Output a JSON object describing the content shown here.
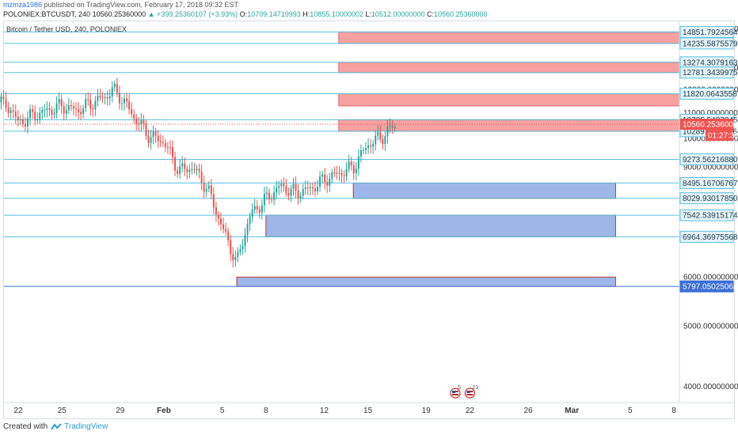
{
  "header": {
    "user": "mzmza1986",
    "published_text": "published on TradingView.com, February 17, 2018 09:32 EST",
    "symbol": "POLONIEX:BTCUSDT, 240",
    "last": "10560.25360000",
    "change": "▲ +399.25360107 (+3.93%)",
    "open_label": "O:",
    "open": "10709.14719993",
    "high_label": "H:",
    "high": "10855.10000002",
    "low_label": "L:",
    "low": "10512.00000000",
    "close_label": "C:",
    "close": "10560.25360000"
  },
  "footer": {
    "created_with": "Created with",
    "brand": "TradingView",
    "logo_icon": "tradingview-logo-icon"
  },
  "colors": {
    "up": "#26a69a",
    "down": "#ef5350",
    "hline": "#5bc0de",
    "resistance_fill": "#f7a1a1",
    "resistance_stroke": "#e06666",
    "support_fill": "#9db8e8",
    "support_stroke": "#c0392b",
    "price_tag_bg": "#e3f3f8",
    "last_price_bg": "#ef5350",
    "support_line": "#3b6fd6"
  },
  "chart_data": {
    "type": "candlestick",
    "title": "Bitcoin / Tether USD, 240, POLONIEX",
    "ylim": [
      3500,
      15300
    ],
    "y_scale": "log",
    "y_ticks": [
      "4000.00000000",
      "5000.00000000",
      "6000.00000000",
      "9000.00000000",
      "10000.00000000",
      "11000.00000000",
      "12000.00000000",
      "13000.00000000",
      "15000.00000000"
    ],
    "x_ticks": [
      "22",
      "25",
      "29",
      "Feb",
      "5",
      "8",
      "12",
      "15",
      "19",
      "22",
      "26",
      "Mar",
      "5",
      "8"
    ],
    "x_tick_dates": [
      "2018-01-22",
      "2018-01-25",
      "2018-01-29",
      "2018-02-01",
      "2018-02-05",
      "2018-02-08",
      "2018-02-12",
      "2018-02-15",
      "2018-02-19",
      "2018-02-22",
      "2018-02-26",
      "2018-03-01",
      "2018-03-05",
      "2018-03-08"
    ],
    "price_levels": [
      {
        "label": "14851.79245649",
        "value": 14851.79245649
      },
      {
        "label": "14235.58755799",
        "value": 14235.58755799
      },
      {
        "label": "13274.30791633",
        "value": 13274.30791633
      },
      {
        "label": "12781.34399753",
        "value": 12781.34399753
      },
      {
        "label": "11820.06435587",
        "value": 11820.06435587
      },
      {
        "label": "10735.54373450",
        "value": 10735.5437345
      },
      {
        "label": "10289.65221164",
        "value": 10289.65221164
      },
      {
        "label": "9273.56216880",
        "value": 9273.5621688
      },
      {
        "label": "8495.16706767",
        "value": 8495.16706767
      },
      {
        "label": "8029.93017850",
        "value": 8029.9301785
      },
      {
        "label": "7542.53915174",
        "value": 7542.53915174
      },
      {
        "label": "6964.36975568",
        "value": 6964.36975568
      },
      {
        "label": "5797.05025066",
        "value": 5797.05025066
      }
    ],
    "last_price": {
      "label": "10560.25360000",
      "value": 10560.2536,
      "countdown": "01:27:33"
    },
    "resistance_zones": [
      {
        "from": 14235.58755799,
        "to": 14851.79245649,
        "start": "2018-02-13"
      },
      {
        "from": 12781.34399753,
        "to": 13274.30791633,
        "start": "2018-02-13"
      },
      {
        "from": 11300,
        "to": 11820.06435587,
        "start": "2018-02-13"
      },
      {
        "from": 10289.65221164,
        "to": 10735.5437345,
        "start": "2018-02-13"
      }
    ],
    "support_zones": [
      {
        "from": 8029.9301785,
        "to": 8495.16706767,
        "start": "2018-02-14",
        "end": "2018-03-04"
      },
      {
        "from": 6964.36975568,
        "to": 7542.53915174,
        "start": "2018-02-08",
        "end": "2018-03-04"
      },
      {
        "from": 5797.05025066,
        "to": 6000,
        "start": "2018-02-06",
        "end": "2018-03-04"
      }
    ],
    "events": [
      {
        "date": "2018-02-21",
        "label": "5"
      },
      {
        "date": "2018-02-22",
        "label": "21"
      }
    ],
    "price_path": [
      [
        "2018-01-20",
        12300
      ],
      [
        "2018-01-21",
        11300
      ],
      [
        "2018-01-21T12:00",
        11200
      ],
      [
        "2018-01-22",
        10600
      ],
      [
        "2018-01-23",
        10900
      ],
      [
        "2018-01-24",
        11100
      ],
      [
        "2018-01-25",
        11300
      ],
      [
        "2018-01-26",
        11100
      ],
      [
        "2018-01-27",
        11400
      ],
      [
        "2018-01-28",
        11700
      ],
      [
        "2018-01-28T12:00",
        12000
      ],
      [
        "2018-01-29",
        11700
      ],
      [
        "2018-01-30",
        10800
      ],
      [
        "2018-01-31",
        10100
      ],
      [
        "2018-02-01",
        9900
      ],
      [
        "2018-02-02",
        8900
      ],
      [
        "2018-02-03",
        9000
      ],
      [
        "2018-02-04",
        8300
      ],
      [
        "2018-02-05",
        7200
      ],
      [
        "2018-02-06",
        6300
      ],
      [
        "2018-02-06T12:00",
        7000
      ],
      [
        "2018-02-07",
        7600
      ],
      [
        "2018-02-08",
        8000
      ],
      [
        "2018-02-09",
        8400
      ],
      [
        "2018-02-10",
        8200
      ],
      [
        "2018-02-11",
        8300
      ],
      [
        "2018-02-12",
        8600
      ],
      [
        "2018-02-13",
        8800
      ],
      [
        "2018-02-14",
        9000
      ],
      [
        "2018-02-15",
        9800
      ],
      [
        "2018-02-16",
        10100
      ],
      [
        "2018-02-17",
        10600
      ]
    ]
  }
}
